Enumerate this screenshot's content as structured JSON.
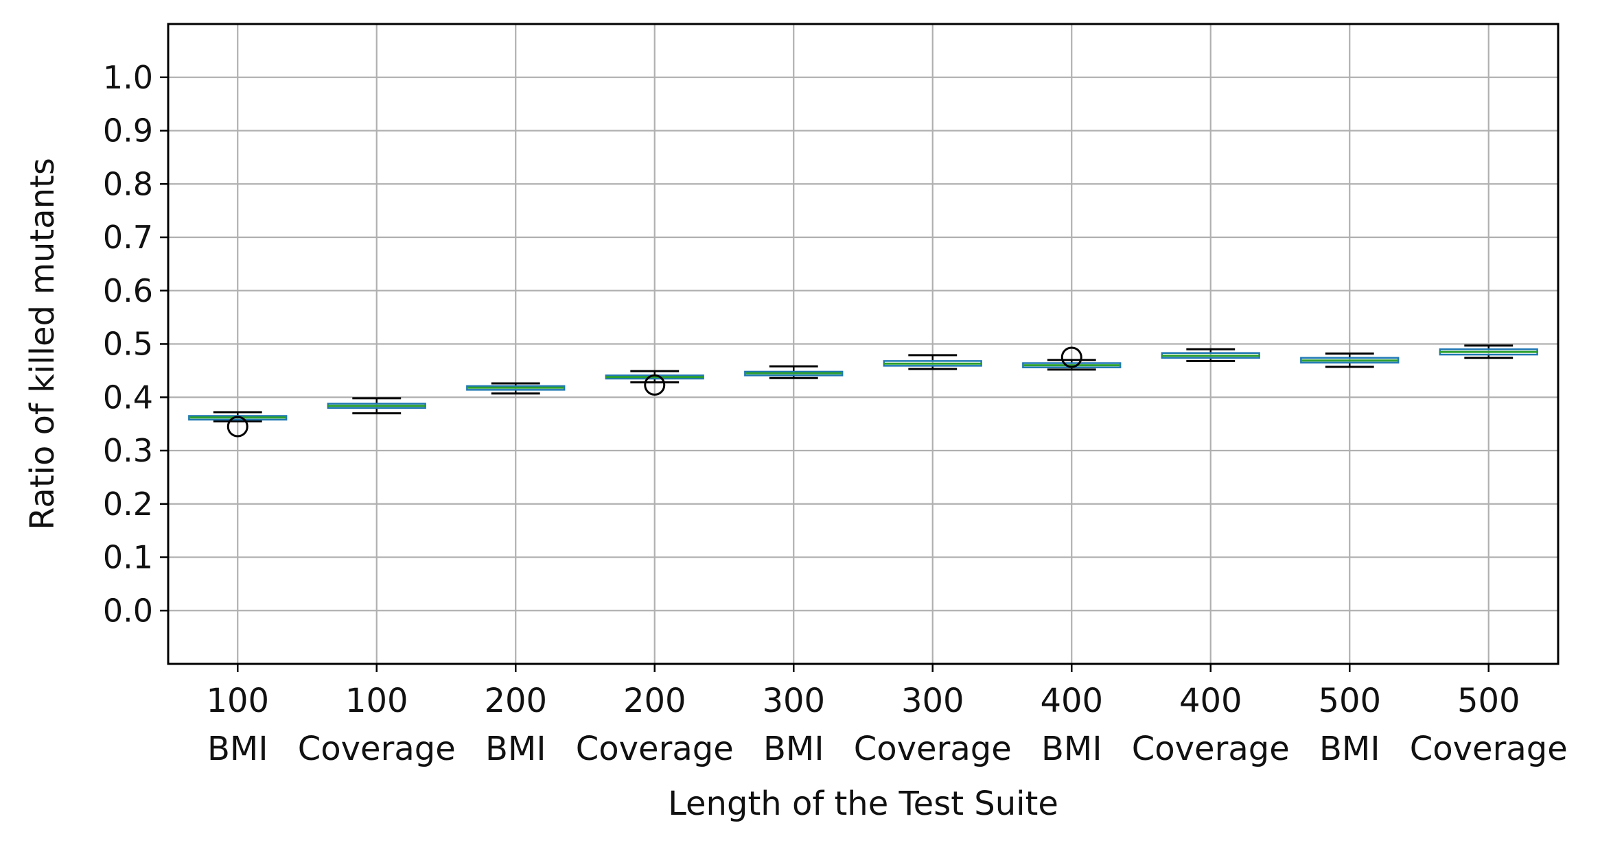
{
  "chart_data": {
    "type": "box",
    "title": "",
    "xlabel": "Length of the Test Suite",
    "ylabel": "Ratio of killed mutants",
    "ylim": [
      -0.1,
      1.1
    ],
    "yticks": [
      "0.0",
      "0.1",
      "0.2",
      "0.3",
      "0.4",
      "0.5",
      "0.6",
      "0.7",
      "0.8",
      "0.9",
      "1.0"
    ],
    "grid": true,
    "colors": {
      "box": "#1f77b4",
      "median": "#2ca02c",
      "whisker": "#000000",
      "grid": "#b0b0b0"
    },
    "categories": [
      {
        "top": "100",
        "bottom": "BMI"
      },
      {
        "top": "100",
        "bottom": "Coverage"
      },
      {
        "top": "200",
        "bottom": "BMI"
      },
      {
        "top": "200",
        "bottom": "Coverage"
      },
      {
        "top": "300",
        "bottom": "BMI"
      },
      {
        "top": "300",
        "bottom": "Coverage"
      },
      {
        "top": "400",
        "bottom": "BMI"
      },
      {
        "top": "400",
        "bottom": "Coverage"
      },
      {
        "top": "500",
        "bottom": "BMI"
      },
      {
        "top": "500",
        "bottom": "Coverage"
      }
    ],
    "boxes": [
      {
        "whislo": 0.355,
        "q1": 0.358,
        "med": 0.362,
        "q3": 0.365,
        "whishi": 0.372,
        "fliers": [
          0.345
        ]
      },
      {
        "whislo": 0.37,
        "q1": 0.38,
        "med": 0.384,
        "q3": 0.388,
        "whishi": 0.398,
        "fliers": []
      },
      {
        "whislo": 0.407,
        "q1": 0.414,
        "med": 0.418,
        "q3": 0.421,
        "whishi": 0.426,
        "fliers": []
      },
      {
        "whislo": 0.428,
        "q1": 0.435,
        "med": 0.438,
        "q3": 0.441,
        "whishi": 0.449,
        "fliers": [
          0.423
        ]
      },
      {
        "whislo": 0.436,
        "q1": 0.441,
        "med": 0.445,
        "q3": 0.448,
        "whishi": 0.458,
        "fliers": []
      },
      {
        "whislo": 0.453,
        "q1": 0.459,
        "med": 0.463,
        "q3": 0.468,
        "whishi": 0.479,
        "fliers": []
      },
      {
        "whislo": 0.452,
        "q1": 0.456,
        "med": 0.46,
        "q3": 0.464,
        "whishi": 0.47,
        "fliers": [
          0.475
        ]
      },
      {
        "whislo": 0.468,
        "q1": 0.474,
        "med": 0.478,
        "q3": 0.483,
        "whishi": 0.49,
        "fliers": []
      },
      {
        "whislo": 0.457,
        "q1": 0.465,
        "med": 0.469,
        "q3": 0.474,
        "whishi": 0.482,
        "fliers": []
      },
      {
        "whislo": 0.474,
        "q1": 0.48,
        "med": 0.485,
        "q3": 0.49,
        "whishi": 0.497,
        "fliers": []
      }
    ]
  }
}
